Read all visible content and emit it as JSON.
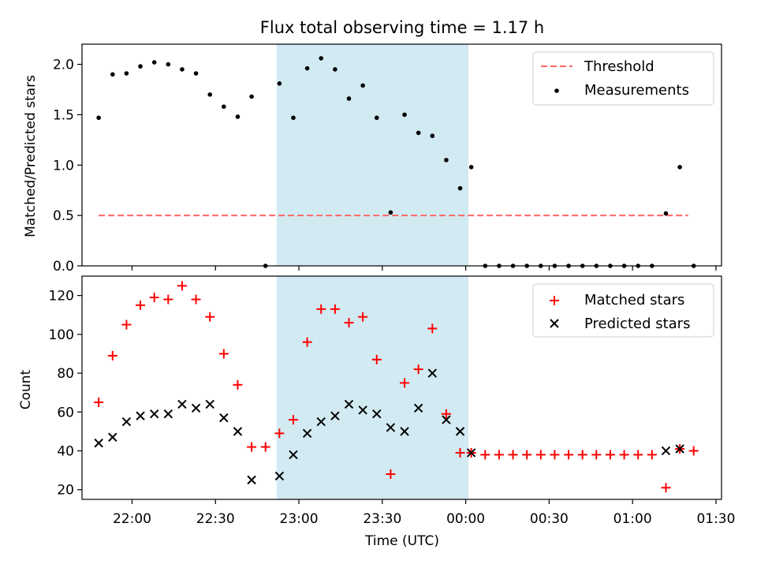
{
  "chart_data": [
    {
      "type": "scatter",
      "title": "Flux total observing time = 1.17 h",
      "ylabel": "Matched/Predicted stars",
      "xlabel": "",
      "xlim": [
        "21:42",
        "01:32"
      ],
      "ylim": [
        0,
        2.2
      ],
      "y_ticks": [
        0.0,
        0.5,
        1.0,
        1.5,
        2.0
      ],
      "y_tick_labels": [
        "0.0",
        "0.5",
        "1.0",
        "1.5",
        "2.0"
      ],
      "grid": false,
      "legend_position": "top-right",
      "shaded_interval": [
        "22:52",
        "00:01"
      ],
      "shaded_color": "#add8e6",
      "series": [
        {
          "name": "Threshold",
          "kind": "line",
          "style": "dashed",
          "color": "#ff6666",
          "x": [
            "21:48",
            "01:20"
          ],
          "y": [
            0.5,
            0.5
          ]
        },
        {
          "name": "Measurements",
          "kind": "points",
          "color": "#000000",
          "x": [
            "21:48",
            "21:53",
            "21:58",
            "22:03",
            "22:08",
            "22:13",
            "22:18",
            "22:23",
            "22:28",
            "22:33",
            "22:38",
            "22:43",
            "22:48",
            "22:53",
            "22:58",
            "23:03",
            "23:08",
            "23:13",
            "23:18",
            "23:23",
            "23:28",
            "23:33",
            "23:38",
            "23:43",
            "23:48",
            "23:53",
            "23:58",
            "00:02",
            "00:07",
            "00:12",
            "00:17",
            "00:22",
            "00:27",
            "00:32",
            "00:37",
            "00:42",
            "00:47",
            "00:52",
            "00:57",
            "01:02",
            "01:07",
            "01:12",
            "01:17",
            "01:22"
          ],
          "y": [
            1.47,
            1.9,
            1.91,
            1.98,
            2.02,
            2.0,
            1.95,
            1.91,
            1.7,
            1.58,
            1.48,
            1.68,
            0.0,
            1.81,
            1.47,
            1.96,
            2.06,
            1.95,
            1.66,
            1.79,
            1.47,
            0.53,
            1.5,
            1.32,
            1.29,
            1.05,
            0.77,
            0.98,
            0.0,
            0.0,
            0.0,
            0.0,
            0.0,
            0.0,
            0.0,
            0.0,
            0.0,
            0.0,
            0.0,
            0.0,
            0.0,
            0.52,
            0.98,
            0.0
          ]
        }
      ]
    },
    {
      "type": "scatter",
      "title": "",
      "ylabel": "Count",
      "xlabel": "Time (UTC)",
      "xlim": [
        "21:42",
        "01:32"
      ],
      "ylim": [
        15,
        130
      ],
      "y_ticks": [
        20,
        40,
        60,
        80,
        100,
        120
      ],
      "y_tick_labels": [
        "20",
        "40",
        "60",
        "80",
        "100",
        "120"
      ],
      "x_ticks": [
        "22:00",
        "22:30",
        "23:00",
        "23:30",
        "00:00",
        "00:30",
        "01:00",
        "01:30"
      ],
      "x_tick_labels": [
        "22:00",
        "22:30",
        "23:00",
        "23:30",
        "00:00",
        "00:30",
        "01:00",
        "01:30"
      ],
      "grid": false,
      "legend_position": "top-right",
      "shaded_interval": [
        "22:52",
        "00:01"
      ],
      "shaded_color": "#add8e6",
      "series": [
        {
          "name": "Matched stars",
          "marker": "plus",
          "color": "#ff0000",
          "x": [
            "21:48",
            "21:53",
            "21:58",
            "22:03",
            "22:08",
            "22:13",
            "22:18",
            "22:23",
            "22:28",
            "22:33",
            "22:38",
            "22:43",
            "22:48",
            "22:53",
            "22:58",
            "23:03",
            "23:08",
            "23:13",
            "23:18",
            "23:23",
            "23:28",
            "23:33",
            "23:38",
            "23:43",
            "23:48",
            "23:53",
            "23:58",
            "00:02",
            "00:07",
            "00:12",
            "00:17",
            "00:22",
            "00:27",
            "00:32",
            "00:37",
            "00:42",
            "00:47",
            "00:52",
            "00:57",
            "01:02",
            "01:07",
            "01:12",
            "01:17",
            "01:22"
          ],
          "y": [
            65,
            89,
            105,
            115,
            119,
            118,
            125,
            118,
            109,
            90,
            74,
            42,
            42,
            49,
            56,
            96,
            113,
            113,
            106,
            109,
            87,
            28,
            75,
            82,
            103,
            59,
            39,
            39,
            38,
            38,
            38,
            38,
            38,
            38,
            38,
            38,
            38,
            38,
            38,
            38,
            38,
            21,
            41,
            40
          ]
        },
        {
          "name": "Predicted stars",
          "marker": "x",
          "color": "#000000",
          "x": [
            "21:48",
            "21:53",
            "21:58",
            "22:03",
            "22:08",
            "22:13",
            "22:18",
            "22:23",
            "22:28",
            "22:33",
            "22:38",
            "22:43",
            "22:53",
            "22:58",
            "23:03",
            "23:08",
            "23:13",
            "23:18",
            "23:23",
            "23:28",
            "23:33",
            "23:38",
            "23:43",
            "23:48",
            "23:53",
            "23:58",
            "00:02",
            "01:12",
            "01:17"
          ],
          "y": [
            44,
            47,
            55,
            58,
            59,
            59,
            64,
            62,
            64,
            57,
            50,
            25,
            27,
            38,
            49,
            55,
            58,
            64,
            61,
            59,
            52,
            50,
            62,
            80,
            56,
            50,
            39,
            40,
            41
          ]
        }
      ]
    }
  ]
}
